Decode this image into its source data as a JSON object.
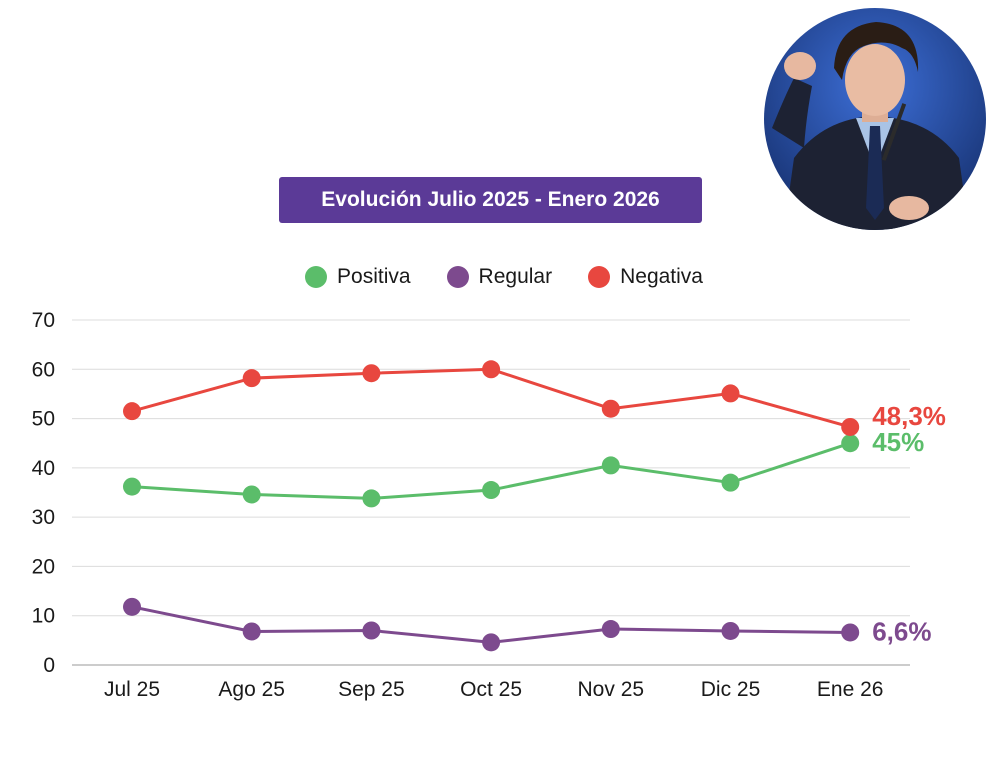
{
  "chart_data": {
    "type": "line",
    "title": "Evolución Julio 2025 - Enero 2026",
    "categories": [
      "Jul 25",
      "Ago 25",
      "Sep 25",
      "Oct 25",
      "Nov 25",
      "Dic 25",
      "Ene 26"
    ],
    "ylim": [
      0,
      70
    ],
    "yticks": [
      0,
      10,
      20,
      30,
      40,
      50,
      60,
      70
    ],
    "grid": true,
    "legend_position": "top-center",
    "series": [
      {
        "name": "Positiva",
        "color": "#5bbd6a",
        "values": [
          36.2,
          34.6,
          33.8,
          35.5,
          40.5,
          37.0,
          45.0
        ],
        "end_label": "45%"
      },
      {
        "name": "Regular",
        "color": "#7d4a8e",
        "values": [
          11.8,
          6.8,
          7.0,
          4.6,
          7.3,
          6.9,
          6.6
        ],
        "end_label": "6,6%"
      },
      {
        "name": "Negativa",
        "color": "#e8473f",
        "values": [
          51.5,
          58.2,
          59.2,
          60.0,
          52.0,
          55.1,
          48.3
        ],
        "end_label": "48,3%"
      }
    ]
  },
  "photo": {
    "icon": "person-photo-icon"
  }
}
